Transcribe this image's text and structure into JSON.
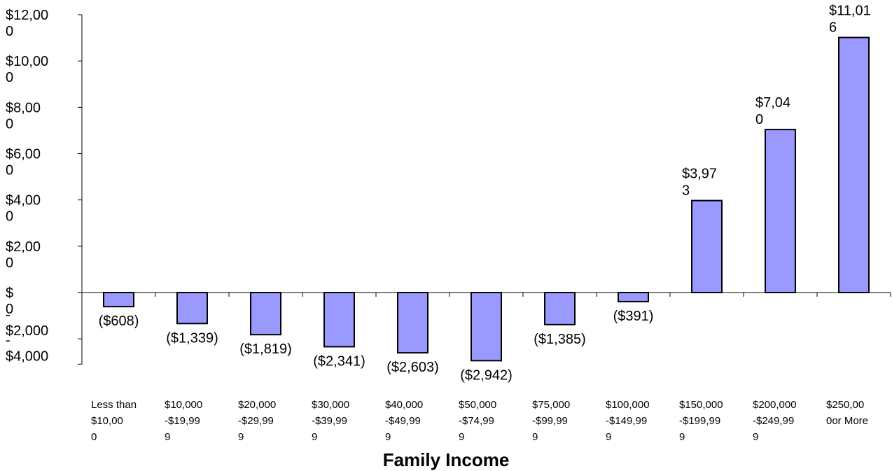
{
  "chart_data": {
    "type": "bar",
    "xlabel": "Family Income",
    "ylabel": "",
    "ylim": [
      -4000,
      12000
    ],
    "yticks": [
      12000,
      10000,
      8000,
      6000,
      4000,
      2000,
      0,
      -2000,
      -4000
    ],
    "ytick_labels": [
      [
        "$12,00",
        "0"
      ],
      [
        "$10,00",
        "0"
      ],
      [
        "$8,00",
        "0"
      ],
      [
        "$6,00",
        "0"
      ],
      [
        "$4,00",
        "0"
      ],
      [
        "$2,00",
        "0"
      ],
      [
        "$",
        "0"
      ],
      [
        "-",
        "$2,000"
      ],
      [
        "-",
        "$4,000"
      ]
    ],
    "categories": [
      [
        "Less than",
        "$10,00",
        "0"
      ],
      [
        "$10,000",
        "-$19,99",
        "9"
      ],
      [
        "$20,000",
        "-$29,99",
        "9"
      ],
      [
        "$30,000",
        "-$39,99",
        "9"
      ],
      [
        "$40,000",
        "-$49,99",
        "9"
      ],
      [
        "$50,000",
        "-$74,99",
        "9"
      ],
      [
        "$75,000",
        "-$99,99",
        "9"
      ],
      [
        "$100,000",
        "-$149,99",
        "9"
      ],
      [
        "$150,000",
        "-$199,99",
        "9"
      ],
      [
        "$200,000",
        "-$249,99",
        "9"
      ],
      [
        "$250,00",
        "0or More",
        ""
      ]
    ],
    "values": [
      -608,
      -1339,
      -1819,
      -2341,
      -2603,
      -2942,
      -1385,
      -391,
      3973,
      7040,
      11016
    ],
    "data_labels": [
      [
        "($608)"
      ],
      [
        "($1,339)"
      ],
      [
        "($1,819)"
      ],
      [
        "($2,341)"
      ],
      [
        "($2,603)"
      ],
      [
        "($2,942)"
      ],
      [
        "($1,385)"
      ],
      [
        "($391)"
      ],
      [
        "$3,97",
        "3"
      ],
      [
        "$7,04",
        "0"
      ],
      [
        "$11,01",
        "6"
      ]
    ],
    "bar_color": "#9999ff",
    "bar_edge_color": "#000000",
    "grid": false
  }
}
